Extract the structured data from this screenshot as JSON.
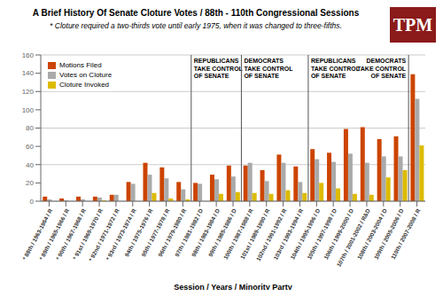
{
  "chart_data": {
    "type": "bar",
    "title": "A Brief History Of Senate Cloture Votes / 88th - 110th Congressional Sessions",
    "subtitle": "* Cloture required a two-thirds vote until early 1975, when it was changed to three-fifths.",
    "xlabel": "Session / Years / Minority Party",
    "categories": [
      "* 88th / 1963-1964 / R",
      "* 89th / 1965-1966 / R",
      "* 90th / 1967-1968 / R",
      "* 91st / 1969-1970 / R",
      "* 92nd / 1971-1972 / R",
      "* 93rd / 1973-1974 / R",
      "94th / 1975-1976 / R",
      "95th / 1977-1978 / R",
      "96th / 1979-1980 / R",
      "97th / 1981-1982 / D",
      "98th / 1983-1984 / D",
      "99th / 1985-1986 / D",
      "100th / 1987-1988 / R",
      "101st / 1989-1990 / R",
      "102nd / 1991-1992 / R",
      "103rd / 1993-1994 / R",
      "104th / 1995-1996 / D",
      "105th / 1997-1998 / D",
      "106th / 1999-2000 / D",
      "107th / 2001-2002 / R&D",
      "108th / 2003-2004 / D",
      "109th / 2005-2006 / D",
      "110th / 2007-2008 / R"
    ],
    "series": [
      {
        "name": "Motions Filed",
        "color": "#cc4400",
        "values": [
          5,
          3,
          5,
          5,
          7,
          21,
          42,
          37,
          21,
          20,
          29,
          39,
          39,
          34,
          51,
          38,
          57,
          53,
          79,
          81,
          68,
          71,
          139
        ]
      },
      {
        "name": "Votes on Cloture",
        "color": "#aaaaaa",
        "values": [
          2,
          1,
          2,
          4,
          7,
          19,
          29,
          25,
          13,
          19,
          24,
          27,
          42,
          22,
          42,
          21,
          46,
          43,
          52,
          42,
          49,
          49,
          112
        ]
      },
      {
        "name": "Cloture Invoked",
        "color": "#ddbb00",
        "values": [
          0,
          0,
          0,
          1,
          0,
          0,
          9,
          3,
          2,
          0,
          8,
          10,
          9,
          8,
          12,
          9,
          20,
          14,
          8,
          7,
          26,
          34,
          61
        ]
      }
    ],
    "ylim": [
      0,
      160
    ],
    "yticks": [
      0,
      20,
      40,
      60,
      80,
      100,
      120,
      140,
      160
    ],
    "grid": true,
    "legend": "upper left",
    "annotations": [
      {
        "text": "REPUBLICANS\nTAKE CONTROL\nOF SENATE",
        "x": "97th / 1981-1982 / D"
      },
      {
        "text": "DEMOCRATS\nTAKE CONTROL\nOF SENATE",
        "x": "100th / 1987-1988 / R"
      },
      {
        "text": "REPUBLICANS\nTAKE CONTROL\nOF SENATE",
        "x": "104th / 1995-1996 / D"
      },
      {
        "text": "DEMOCRATS\nTAKE CONTROL\nOF SENATE",
        "x": "110th / 2007-2008 / R"
      },
      {
        "text": "TPM",
        "color": "#8b1a1a"
      }
    ]
  }
}
